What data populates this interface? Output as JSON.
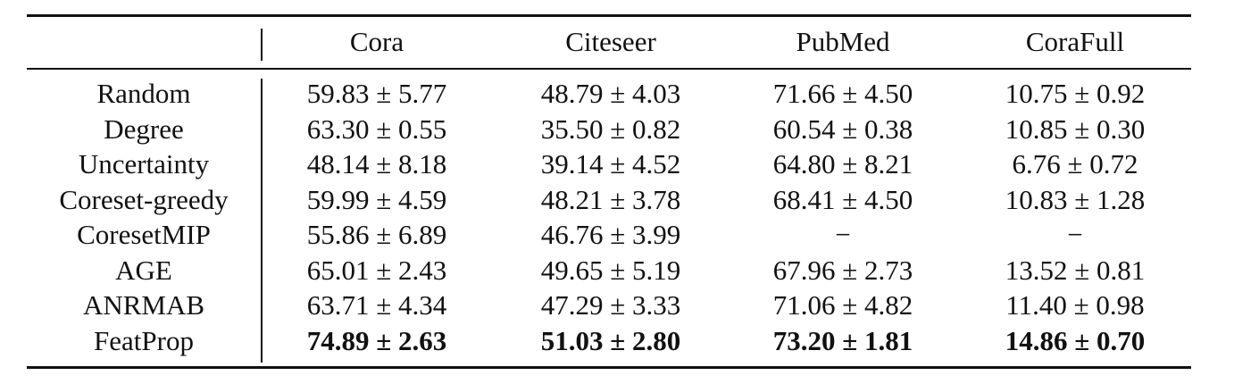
{
  "table": {
    "columns": [
      "",
      "Cora",
      "Citeseer",
      "PubMed",
      "CoraFull"
    ],
    "rows": [
      {
        "method": "Random",
        "values": [
          "59.83 ± 5.77",
          "48.79 ± 4.03",
          "71.66 ± 4.50",
          "10.75 ± 0.92"
        ],
        "bold": false
      },
      {
        "method": "Degree",
        "values": [
          "63.30 ± 0.55",
          "35.50 ± 0.82",
          "60.54 ± 0.38",
          "10.85 ± 0.30"
        ],
        "bold": false
      },
      {
        "method": "Uncertainty",
        "values": [
          "48.14 ± 8.18",
          "39.14 ± 4.52",
          "64.80 ± 8.21",
          "6.76 ± 0.72"
        ],
        "bold": false
      },
      {
        "method": "Coreset-greedy",
        "values": [
          "59.99 ± 4.59",
          "48.21 ± 3.78",
          "68.41 ± 4.50",
          "10.83 ± 1.28"
        ],
        "bold": false
      },
      {
        "method": "CoresetMIP",
        "values": [
          "55.86 ± 6.89",
          "46.76 ± 3.99",
          "−",
          "−"
        ],
        "bold": false
      },
      {
        "method": "AGE",
        "values": [
          "65.01 ± 2.43",
          "49.65 ± 5.19",
          "67.96 ± 2.73",
          "13.52 ± 0.81"
        ],
        "bold": false
      },
      {
        "method": "ANRMAB",
        "values": [
          "63.71 ± 4.34",
          "47.29 ± 3.33",
          "71.06 ± 4.82",
          "11.40 ± 0.98"
        ],
        "bold": false
      },
      {
        "method": "FeatProp",
        "values": [
          "74.89 ± 2.63",
          "51.03 ± 2.80",
          "73.20 ± 1.81",
          "14.86 ± 0.70"
        ],
        "bold": true
      }
    ]
  }
}
